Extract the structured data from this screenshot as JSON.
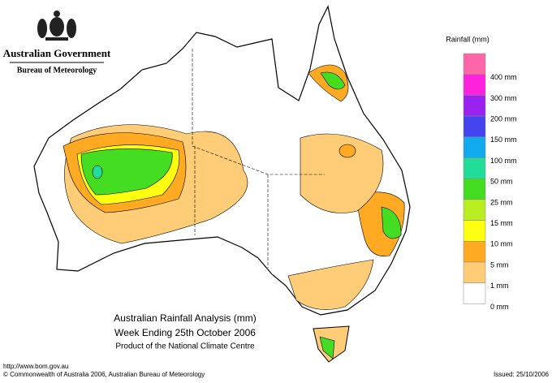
{
  "header": {
    "government": "Australian Government",
    "bureau": "Bureau of Meteorology"
  },
  "legend": {
    "title": "Rainfall (mm)",
    "items": [
      {
        "label": "400 mm",
        "color": "#ff66a8"
      },
      {
        "label": "300 mm",
        "color": "#ff22dd"
      },
      {
        "label": "200 mm",
        "color": "#9922ee"
      },
      {
        "label": "150 mm",
        "color": "#4444ee"
      },
      {
        "label": "100 mm",
        "color": "#11aaee"
      },
      {
        "label": "50 mm",
        "color": "#22dd99"
      },
      {
        "label": "25 mm",
        "color": "#44dd22"
      },
      {
        "label": "15 mm",
        "color": "#bbee22"
      },
      {
        "label": "10 mm",
        "color": "#ffff11"
      },
      {
        "label": "5 mm",
        "color": "#ffaa22"
      },
      {
        "label": "1 mm",
        "color": "#ffcc77"
      },
      {
        "label": "0 mm",
        "color": "#ffffff"
      }
    ]
  },
  "titles": [
    "Australian Rainfall Analysis (mm)",
    "Week Ending 25th October 2006",
    "Product of the National Climate Centre"
  ],
  "footer": {
    "url": "http://www.bom.gov.au",
    "copyright": "© Commonwealth of Australia 2006, Australian Bureau of Meteorology",
    "issued": "Issued: 25/10/2006"
  }
}
